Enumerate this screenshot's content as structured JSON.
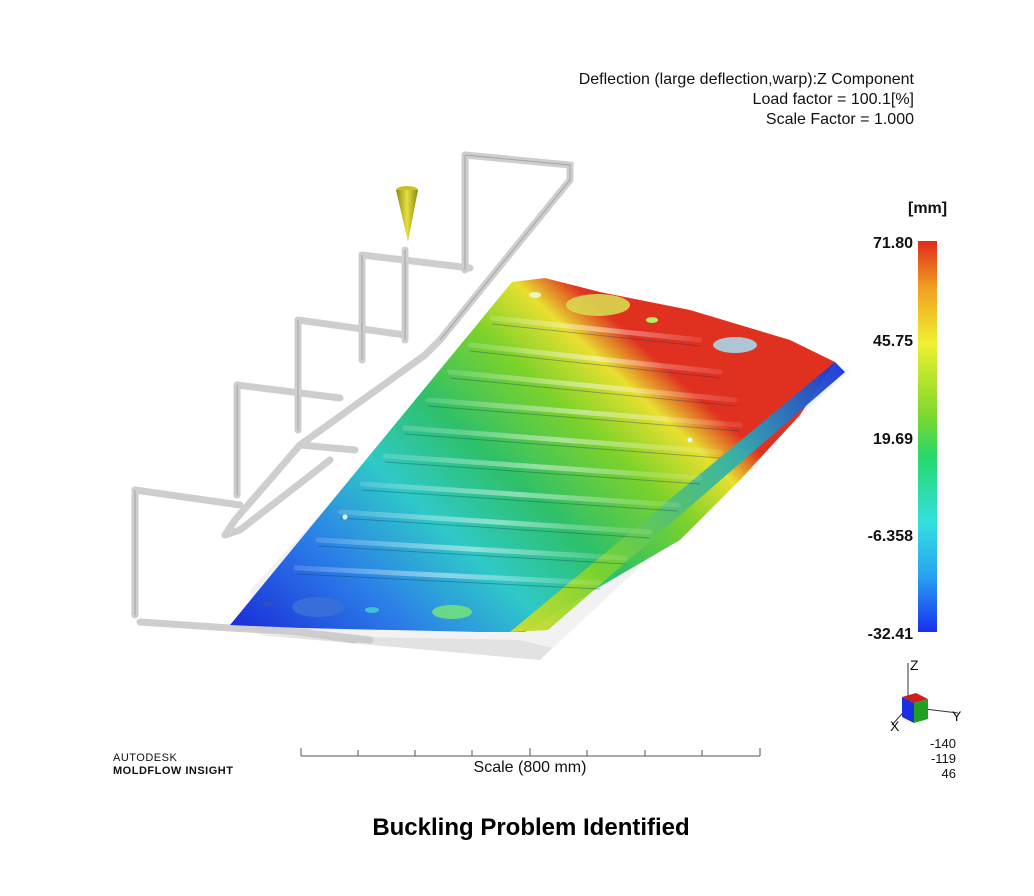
{
  "result": {
    "title": "Deflection (large deflection,warp):Z Component",
    "load_factor": "Load factor = 100.1[%]",
    "scale_factor": "Scale Factor = 1.000"
  },
  "legend": {
    "unit": "[mm]",
    "labels": [
      "71.80",
      "45.75",
      "19.69",
      "-6.358",
      "-32.41"
    ],
    "colors": [
      "#e02a1c",
      "#f0f030",
      "#5ad82c",
      "#33e0e0",
      "#1830f0"
    ]
  },
  "triad": {
    "axis_z": "Z",
    "axis_y": "Y",
    "axis_x": "X",
    "coords": [
      "-140",
      "-119",
      "46"
    ]
  },
  "scale": {
    "label": "Scale (800 mm)"
  },
  "brand": {
    "line1": "AUTODESK",
    "line2": "MOLDFLOW INSIGHT"
  },
  "caption": "Buckling Problem Identified"
}
